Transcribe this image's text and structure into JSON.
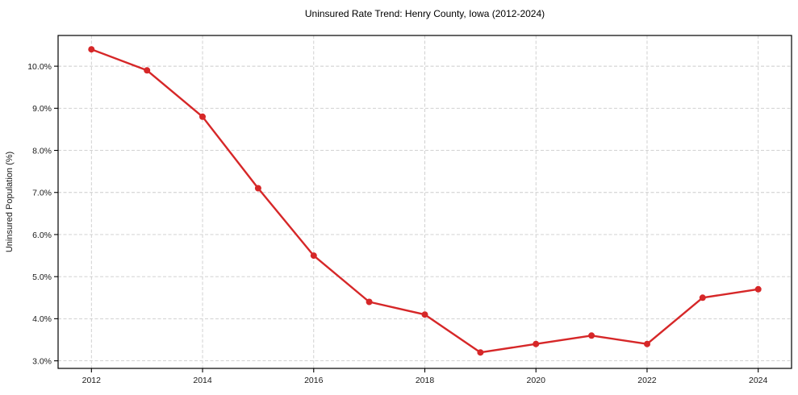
{
  "chart_data": {
    "type": "line",
    "title": "Uninsured Rate Trend: Henry County, Iowa (2012-2024)",
    "xlabel": "",
    "ylabel": "Uninsured Population (%)",
    "series": [
      {
        "name": "Uninsured rate",
        "x": [
          2012,
          2013,
          2014,
          2015,
          2016,
          2017,
          2018,
          2019,
          2020,
          2021,
          2022,
          2023,
          2024
        ],
        "values": [
          10.4,
          9.9,
          8.8,
          7.1,
          5.5,
          4.4,
          4.1,
          3.2,
          3.4,
          3.6,
          3.4,
          4.5,
          4.7
        ],
        "color": "#d62728",
        "marker": "circle"
      }
    ],
    "x_ticks": [
      {
        "value": 2012,
        "label": "2012"
      },
      {
        "value": 2014,
        "label": "2014"
      },
      {
        "value": 2016,
        "label": "2016"
      },
      {
        "value": 2018,
        "label": "2018"
      },
      {
        "value": 2020,
        "label": "2020"
      },
      {
        "value": 2022,
        "label": "2022"
      },
      {
        "value": 2024,
        "label": "2024"
      }
    ],
    "y_ticks": [
      {
        "value": 3,
        "label": "3.0%"
      },
      {
        "value": 4,
        "label": "4.0%"
      },
      {
        "value": 5,
        "label": "5.0%"
      },
      {
        "value": 6,
        "label": "6.0%"
      },
      {
        "value": 7,
        "label": "7.0%"
      },
      {
        "value": 8,
        "label": "8.0%"
      },
      {
        "value": 9,
        "label": "9.0%"
      },
      {
        "value": 10,
        "label": "10.0%"
      }
    ],
    "xlim": [
      2011.4,
      2024.6
    ],
    "ylim": [
      2.82,
      10.73
    ],
    "grid": true,
    "grid_style": "dashed",
    "legend_position": "none",
    "colors": {
      "line": "#d62728",
      "grid": "#cccccc",
      "spine": "#000000",
      "text": "#1a1a1a",
      "background": "#ffffff"
    }
  }
}
